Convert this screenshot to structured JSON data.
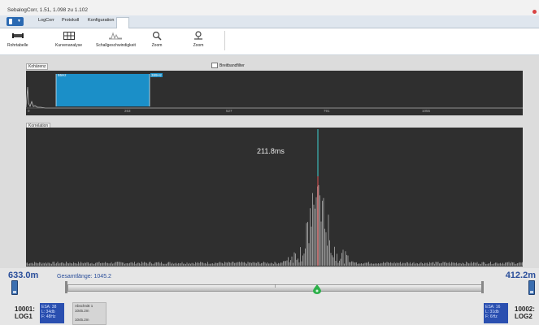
{
  "app": {
    "title": "SebalogCorr, 1.51, 1.098 zu 1.102"
  },
  "tabs": [
    {
      "label": "LogCorr"
    },
    {
      "label": "Protokoll"
    },
    {
      "label": "Konfiguration"
    }
  ],
  "toolbar": {
    "tools": [
      {
        "label": "Rohrtabelle",
        "icon": "pipe-table-icon"
      },
      {
        "label": "Kurvenanalyse",
        "icon": "grid-icon"
      },
      {
        "label": "Schallgeschwindigkeit",
        "icon": "wave-icon"
      },
      {
        "label": "Zoom",
        "icon": "zoom-icon"
      },
      {
        "label": "Zoom",
        "icon": "zoom-reset-icon"
      }
    ]
  },
  "coherence": {
    "label": "Kohärenz",
    "filter_label": "Breitbandfilter",
    "band_low": "55Hz",
    "band_high": "389Hz",
    "ticks": [
      "0",
      "263",
      "527",
      "791",
      "1055"
    ]
  },
  "correlation": {
    "label": "Korrelation",
    "peak_label": "211.8ms"
  },
  "footer": {
    "left_distance": "633.0m",
    "right_distance": "412.2m",
    "total_length": "Gesamtlänge: 1045.2",
    "pipe_marker": "I",
    "left_logger": {
      "id": "10001:",
      "name": "LOG1",
      "esa": "ESA: 38",
      "level": "L: 34db",
      "freq": "F: 48Hz"
    },
    "right_logger": {
      "id": "10002:",
      "name": "LOG2",
      "esa": "ESA: 16",
      "level": "L: 31db",
      "freq": "F: 6Hz"
    },
    "section": {
      "title": "Abschnitt 1",
      "length": "1045.2m",
      "extra": "1045.2m"
    }
  },
  "colors": {
    "accent_blue": "#2a4fb0",
    "band_fill": "#1b8fc8",
    "drop_green": "#2db04a",
    "plot_bg": "#2f2f2f",
    "distance_text": "#2a4e9a"
  }
}
